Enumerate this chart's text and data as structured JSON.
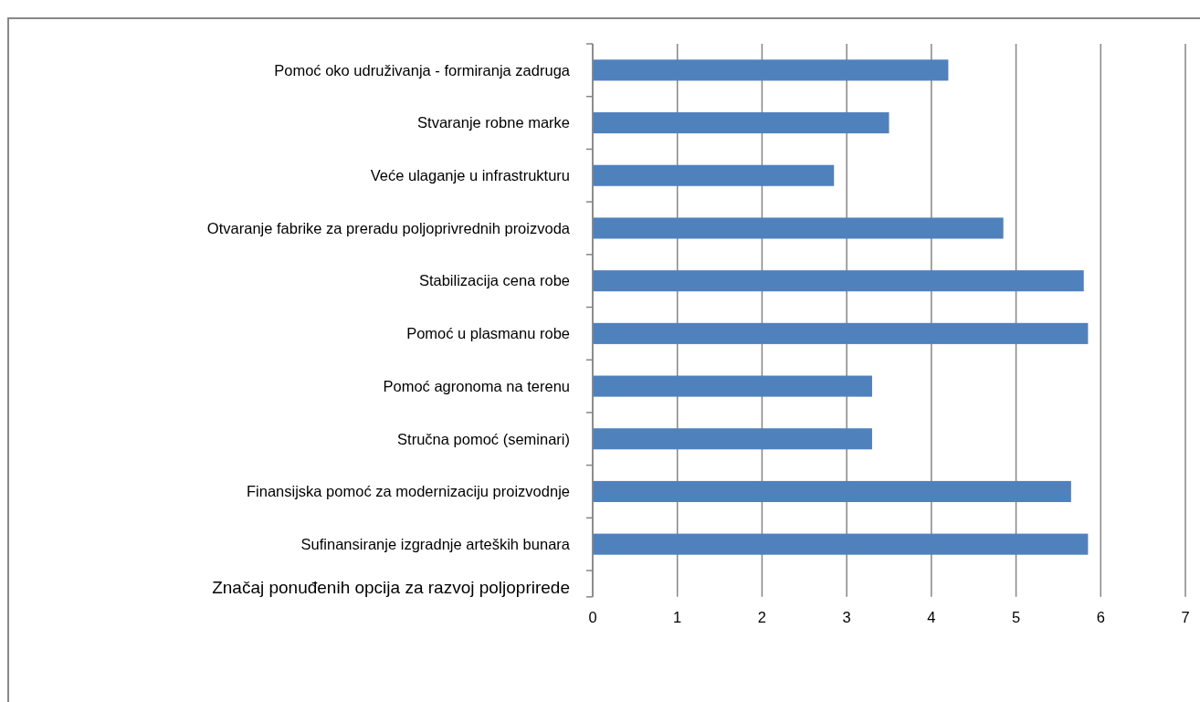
{
  "chart_data": {
    "type": "bar",
    "orientation": "horizontal",
    "title": "Značaj ponuđenih opcija za razvoj poljoprirede",
    "categories": [
      "Pomoć oko udruživanja - formiranja zadruga",
      "Stvaranje robne marke",
      "Veće ulaganje u infrastrukturu",
      "Otvaranje fabrike za preradu poljoprivrednih proizvoda",
      "Stabilizacija cena robe",
      "Pomoć u plasmanu robe",
      "Pomoć agronoma na terenu",
      "Stručna pomoć (seminari)",
      "Finansijska pomoć za modernizaciju proizvodnje",
      "Sufinansiranje izgradnje arteških bunara"
    ],
    "values": [
      4.2,
      3.5,
      2.85,
      4.85,
      5.8,
      5.85,
      3.3,
      3.3,
      5.65,
      5.85
    ],
    "color": "#4f81bd",
    "xlim": [
      0,
      7
    ],
    "xticks": [
      0,
      1,
      2,
      3,
      4,
      5,
      6,
      7
    ],
    "grid": "x"
  }
}
